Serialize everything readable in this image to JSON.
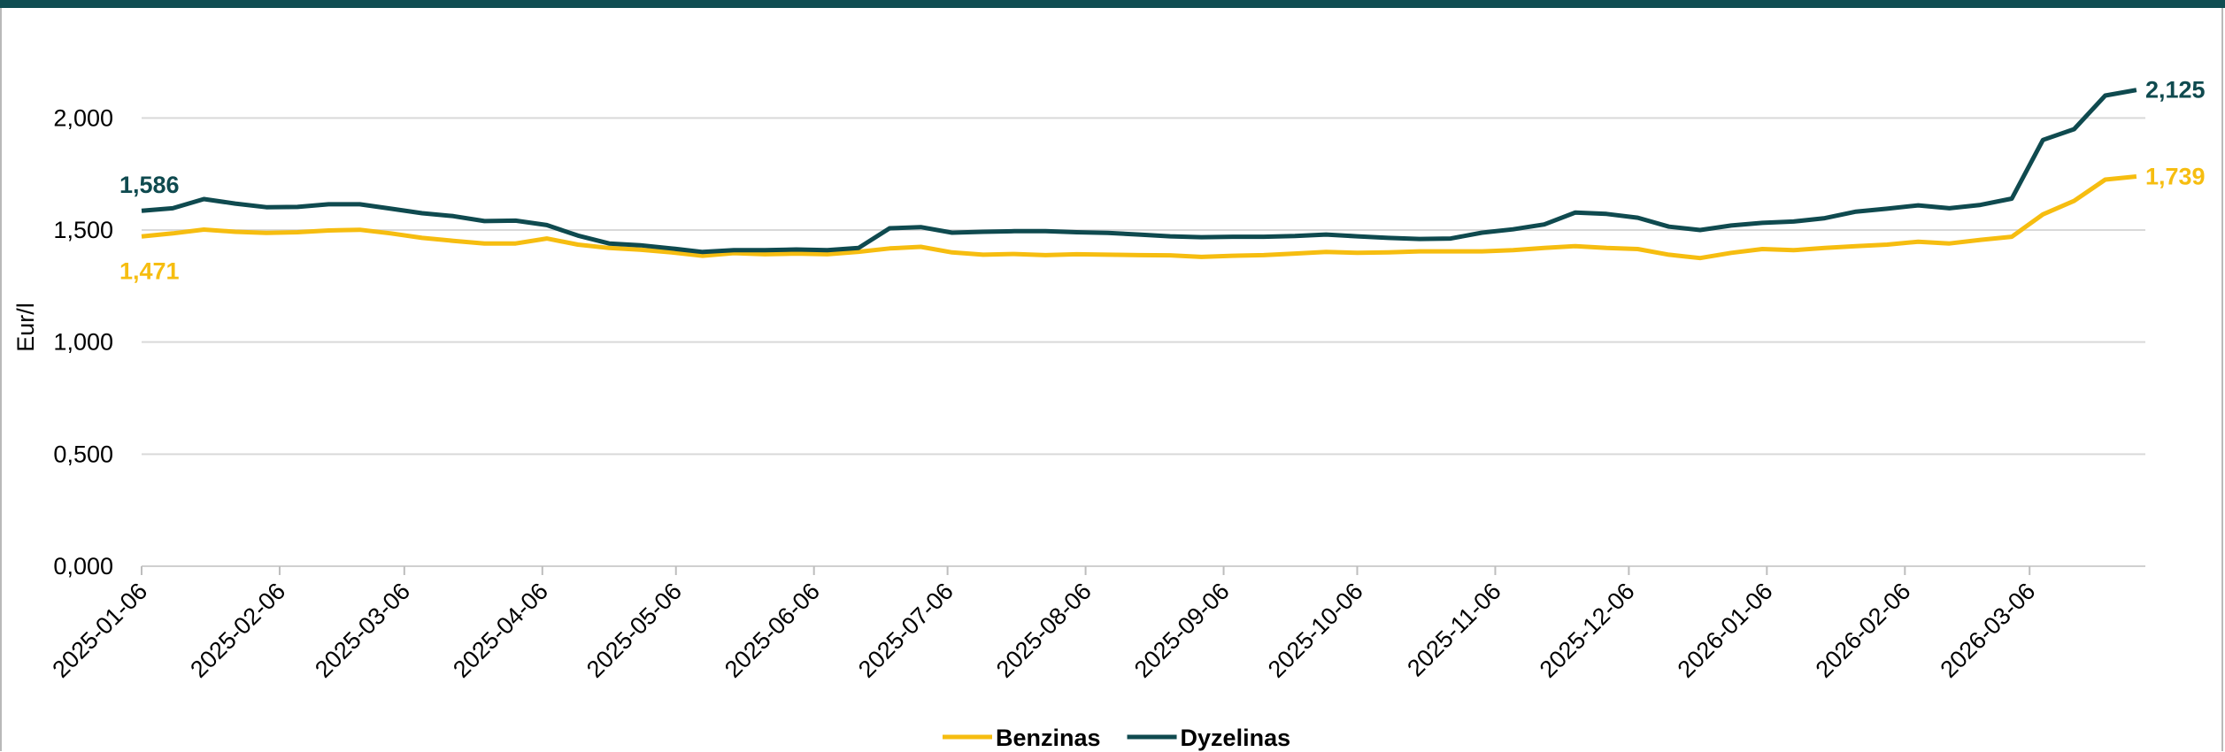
{
  "colors": {
    "top_bar": "#0f4d52",
    "benzinas": "#f6bd10",
    "dyzelinas": "#0f4a4f",
    "grid": "#d9d9d9"
  },
  "chart_data": {
    "type": "line",
    "ylabel": "Eur/l",
    "ylim": [
      0,
      2.25
    ],
    "y_ticks": [
      "0,000",
      "0,500",
      "1,000",
      "1,500",
      "2,000"
    ],
    "x_tick_labels": [
      "2025-01-06",
      "2025-02-06",
      "2025-03-06",
      "2025-04-06",
      "2025-05-06",
      "2025-06-06",
      "2025-07-06",
      "2025-08-06",
      "2025-09-06",
      "2025-10-06",
      "2025-11-06",
      "2025-12-06",
      "2026-01-06",
      "2026-02-06",
      "2026-03-06"
    ],
    "x_dates": [
      "2025-01-06",
      "2025-01-13",
      "2025-01-20",
      "2025-01-27",
      "2025-02-03",
      "2025-02-10",
      "2025-02-17",
      "2025-02-24",
      "2025-03-03",
      "2025-03-10",
      "2025-03-17",
      "2025-03-24",
      "2025-03-31",
      "2025-04-07",
      "2025-04-14",
      "2025-04-21",
      "2025-04-28",
      "2025-05-05",
      "2025-05-12",
      "2025-05-19",
      "2025-05-26",
      "2025-06-02",
      "2025-06-09",
      "2025-06-16",
      "2025-06-23",
      "2025-06-30",
      "2025-07-07",
      "2025-07-14",
      "2025-07-21",
      "2025-07-28",
      "2025-08-04",
      "2025-08-11",
      "2025-08-18",
      "2025-08-25",
      "2025-09-01",
      "2025-09-08",
      "2025-09-15",
      "2025-09-22",
      "2025-09-29",
      "2025-10-06",
      "2025-10-13",
      "2025-10-20",
      "2025-10-27",
      "2025-11-03",
      "2025-11-10",
      "2025-11-17",
      "2025-11-24",
      "2025-12-01",
      "2025-12-08",
      "2025-12-15",
      "2025-12-22",
      "2025-12-29",
      "2026-01-05",
      "2026-01-12",
      "2026-01-19",
      "2026-01-26",
      "2026-02-02",
      "2026-02-09",
      "2026-02-16",
      "2026-02-23",
      "2026-03-02",
      "2026-03-09",
      "2026-03-16",
      "2026-03-23",
      "2026-03-30"
    ],
    "grid": true,
    "legend_position": "bottom",
    "series": [
      {
        "name": "Benzinas",
        "first_label": "1,471",
        "last_label": "1,739",
        "values": [
          1.471,
          1.485,
          1.502,
          1.492,
          1.487,
          1.49,
          1.498,
          1.501,
          1.485,
          1.465,
          1.452,
          1.44,
          1.44,
          1.462,
          1.435,
          1.42,
          1.412,
          1.4,
          1.385,
          1.397,
          1.392,
          1.395,
          1.392,
          1.403,
          1.418,
          1.425,
          1.4,
          1.39,
          1.393,
          1.388,
          1.392,
          1.39,
          1.388,
          1.387,
          1.38,
          1.385,
          1.388,
          1.395,
          1.402,
          1.398,
          1.4,
          1.405,
          1.405,
          1.405,
          1.41,
          1.42,
          1.428,
          1.42,
          1.415,
          1.39,
          1.375,
          1.398,
          1.415,
          1.41,
          1.42,
          1.428,
          1.435,
          1.448,
          1.44,
          1.456,
          1.47,
          1.57,
          1.63,
          1.725,
          1.739
        ]
      },
      {
        "name": "Dyzelinas",
        "first_label": "1,586",
        "last_label": "2,125",
        "values": [
          1.586,
          1.597,
          1.638,
          1.618,
          1.602,
          1.603,
          1.615,
          1.615,
          1.595,
          1.575,
          1.562,
          1.54,
          1.542,
          1.522,
          1.475,
          1.44,
          1.432,
          1.418,
          1.402,
          1.41,
          1.41,
          1.413,
          1.41,
          1.42,
          1.508,
          1.513,
          1.488,
          1.492,
          1.495,
          1.495,
          1.49,
          1.487,
          1.48,
          1.472,
          1.468,
          1.47,
          1.47,
          1.473,
          1.48,
          1.472,
          1.465,
          1.46,
          1.462,
          1.488,
          1.503,
          1.525,
          1.578,
          1.572,
          1.555,
          1.515,
          1.5,
          1.52,
          1.532,
          1.538,
          1.553,
          1.582,
          1.595,
          1.61,
          1.597,
          1.612,
          1.64,
          1.902,
          1.95,
          2.1,
          2.125
        ]
      }
    ]
  }
}
